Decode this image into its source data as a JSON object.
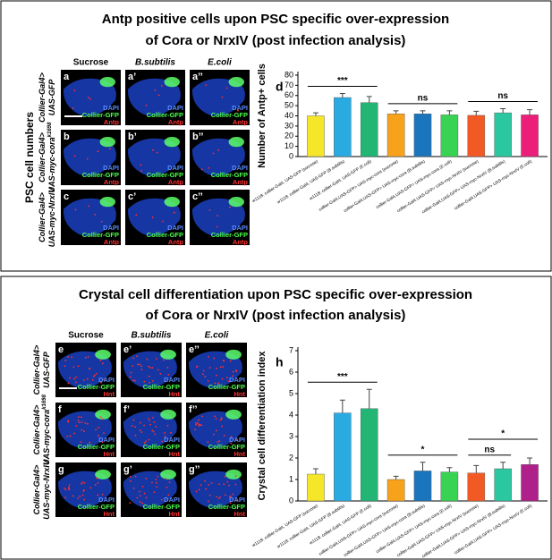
{
  "sections": [
    {
      "title": [
        "Antp positive cells upon PSC specific over-expression",
        "of Cora or NrxIV (post infection analysis)"
      ],
      "side_label": "PSC cell numbers",
      "columns": [
        "Sucrose",
        "B.subtilis",
        "E.coli"
      ],
      "rows": [
        {
          "lines": [
            "Collier-Gal4>",
            "UAS-GFP"
          ]
        },
        {
          "lines": [
            "Collier-Gal4>",
            "UAS-myc-cora"
          ],
          "sup": "k1698"
        },
        {
          "lines": [
            "Collier-Gal4>",
            "UAS-myc-NrxIV"
          ]
        }
      ],
      "images": [
        {
          "letter": "a",
          "channels": [
            "DAPI",
            "Collier-GFP",
            "Antp"
          ]
        },
        {
          "letter": "a’",
          "channels": [
            "DAPI",
            "Collier-GFP",
            "Antp"
          ]
        },
        {
          "letter": "a’’",
          "channels": [
            "DAPI",
            "Collier-GFP",
            "Antp"
          ]
        },
        {
          "letter": "b",
          "channels": [
            "DAPI",
            "Collier-GFP",
            "Antp"
          ]
        },
        {
          "letter": "b’",
          "channels": [
            "DAPI",
            "Collier-GFP",
            "Antp"
          ]
        },
        {
          "letter": "b’’",
          "channels": [
            "DAPI",
            "Collier-GFP",
            "Antp"
          ]
        },
        {
          "letter": "c",
          "channels": [
            "DAPI",
            "Collier-GFP",
            "Antp"
          ]
        },
        {
          "letter": "c’",
          "channels": [
            "DAPI",
            "Collier-GFP",
            "Antp"
          ]
        },
        {
          "letter": "c’’",
          "channels": [
            "DAPI",
            "Collier-GFP",
            "Antp"
          ]
        }
      ],
      "chart_letter": "d"
    },
    {
      "title": [
        "Crystal cell differentiation upon PSC specific over-expression",
        "of Cora or NrxIV (post infection analysis)"
      ],
      "columns": [
        "Sucrose",
        "B.subtilis",
        "E.coli"
      ],
      "rows": [
        {
          "lines": [
            "Collier-Gal4>",
            "UAS-GFP"
          ]
        },
        {
          "lines": [
            "Collier-Gal4>",
            "UAS-myc-cora"
          ],
          "sup": "k1698"
        },
        {
          "lines": [
            "Collier-Gal4>",
            "UAS-myc-NrxIV"
          ]
        }
      ],
      "images": [
        {
          "letter": "e",
          "channels": [
            "DAPI",
            "Collier-GFP",
            "Hnt"
          ]
        },
        {
          "letter": "e’",
          "channels": [
            "DAPI",
            "Collier-GFP",
            "Hnt"
          ]
        },
        {
          "letter": "e’’",
          "channels": [
            "DAPI",
            "Collier-GFP",
            "Hnt"
          ]
        },
        {
          "letter": "f",
          "channels": [
            "DAPI",
            "Collier-GFP",
            "Hnt"
          ]
        },
        {
          "letter": "f’",
          "channels": [
            "DAPI",
            "Collier-GFP",
            "Hnt"
          ]
        },
        {
          "letter": "f’’",
          "channels": [
            "DAPI",
            "Collier-GFP",
            "Hnt"
          ]
        },
        {
          "letter": "g",
          "channels": [
            "DAPI",
            "Collier-GFP",
            "Hnt"
          ]
        },
        {
          "letter": "g’",
          "channels": [
            "DAPI",
            "Collier-GFP",
            "Hnt"
          ]
        },
        {
          "letter": "g’’",
          "channels": [
            "DAPI",
            "Collier-GFP",
            "Hnt"
          ]
        }
      ],
      "chart_letter": "h"
    }
  ],
  "chart_data": [
    {
      "type": "bar",
      "ylabel": "Number of Antp+ cells",
      "ylim": [
        0,
        80
      ],
      "yticks": [
        0,
        10,
        20,
        30,
        40,
        50,
        60,
        70,
        80
      ],
      "categories": [
        "w1118; collier-Gal4, UAS-GFP (sucrose)",
        "w1118; collier-Gal4, UAS-GFP (B.subtilis)",
        "w1118; collier-Gal4, UAS-GFP (E.coli)",
        "collier-Gal4,UAS-GFP> UAS-myc-cora (sucrose)",
        "collier-Gal4,UAS-GFP> UAS-myc-cora (B.subtilis)",
        "collier-Gal4,UAS-GFP> UAS-myc-cora (E.coli)",
        "collier-Gal4,UAS-GFP> UAS-myc-NrxIV (sucrose)",
        "collier-Gal4,UAS-GFP> UAS-myc-NrxIV (B.subtilis)",
        "collier-Gal4,UAS-GFP> UAS-myc-NrxIV (E.coli)"
      ],
      "values": [
        40,
        58,
        53,
        42,
        42,
        41,
        40.5,
        43,
        41
      ],
      "errors": [
        3,
        4,
        6,
        3,
        3,
        4,
        4,
        4,
        5
      ],
      "colors": [
        "#f5e62a",
        "#29abe2",
        "#22b573",
        "#f7a21b",
        "#1b75bc",
        "#39d353",
        "#f15a24",
        "#2bc7a0",
        "#ec1e79"
      ],
      "annotations": [
        "***",
        "ns",
        "ns"
      ]
    },
    {
      "type": "bar",
      "ylabel": "Crystal cell differentiation index",
      "ylim": [
        0,
        7
      ],
      "yticks": [
        0,
        1,
        2,
        3,
        4,
        5,
        6,
        7
      ],
      "categories": [
        "w1118; collier-Gal4, UAS-GFP (sucrose)",
        "w1118; collier-Gal4, UAS-GFP (B.subtilis)",
        "w1118; collier-Gal4, UAS-GFP (E.coli)",
        "collier-Gal4,UAS-GFP> UAS-myc-cora (sucrose)",
        "collier-Gal4,UAS-GFP> UAS-myc-cora (B.subtilis)",
        "collier-Gal4,UAS-GFP> UAS-myc-cora (E.coli)",
        "collier-Gal4,UAS-GFP> UAS-myc-NrxIV (sucrose)",
        "collier-Gal4,UAS-GFP> UAS-myc-NrxIV (B.subtilis)",
        "collier-Gal4,UAS-GFP> UAS-myc-NrxIV (E.coli)"
      ],
      "values": [
        1.25,
        4.1,
        4.3,
        1.0,
        1.4,
        1.35,
        1.3,
        1.5,
        1.7
      ],
      "errors": [
        0.25,
        0.6,
        0.9,
        0.15,
        0.4,
        0.2,
        0.35,
        0.3,
        0.3
      ],
      "colors": [
        "#f5e62a",
        "#29abe2",
        "#22b573",
        "#f7a21b",
        "#1b75bc",
        "#39d353",
        "#f15a24",
        "#2bc7a0",
        "#b0208a"
      ],
      "annotations": [
        "***",
        "*",
        "ns",
        "*"
      ]
    }
  ]
}
